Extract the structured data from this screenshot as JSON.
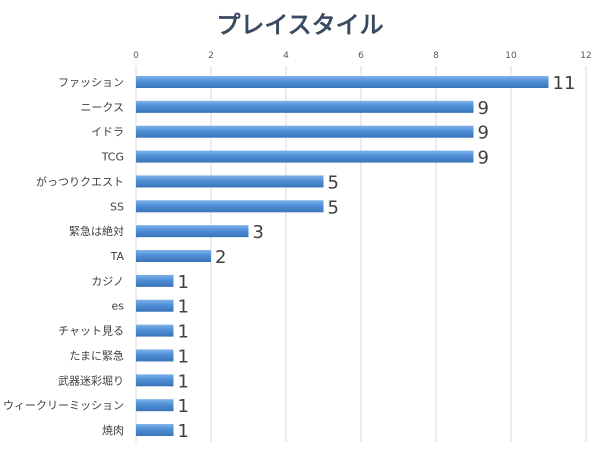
{
  "chart_data": {
    "type": "bar",
    "orientation": "horizontal",
    "title": "プレイスタイル",
    "xlabel": "",
    "ylabel": "",
    "xlim": [
      0,
      12
    ],
    "ticks": [
      "0",
      "2",
      "4",
      "6",
      "8",
      "10",
      "12"
    ],
    "tick_values": [
      0,
      2,
      4,
      6,
      8,
      10,
      12
    ],
    "grid": true,
    "legend": "none",
    "bar_color": "#4f8fd6",
    "categories": [
      "ファッション",
      "ニークス",
      "イドラ",
      "TCG",
      "がっつりクエスト",
      "SS",
      "緊急は絶対",
      "TA",
      "カジノ",
      "es",
      "チャット見る",
      "たまに緊急",
      "武器迷彩堀り",
      "ウィークリーミッション",
      "焼肉"
    ],
    "values": [
      11,
      9,
      9,
      9,
      5,
      5,
      3,
      2,
      1,
      1,
      1,
      1,
      1,
      1,
      1
    ],
    "data_labels": [
      "11",
      "9",
      "9",
      "9",
      "5",
      "5",
      "3",
      "2",
      "1",
      "1",
      "1",
      "1",
      "1",
      "1",
      "1"
    ]
  }
}
